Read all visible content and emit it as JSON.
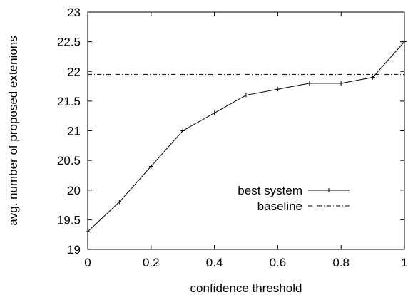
{
  "chart_data": {
    "type": "line",
    "title": "",
    "xlabel": "confidence threshold",
    "ylabel": "avg. number of proposed extenions",
    "xlim": [
      0,
      1
    ],
    "ylim": [
      19,
      23
    ],
    "x_ticks": [
      0,
      0.2,
      0.4,
      0.6,
      0.8,
      1
    ],
    "x_tick_labels": [
      "0",
      "0.2",
      "0.4",
      "0.6",
      "0.8",
      "1"
    ],
    "y_ticks": [
      19,
      19.5,
      20,
      20.5,
      21,
      21.5,
      22,
      22.5,
      23
    ],
    "y_tick_labels": [
      "19",
      "19.5",
      "20",
      "20.5",
      "21",
      "21.5",
      "22",
      "22.5",
      "23"
    ],
    "grid": false,
    "legend_position": "center-right",
    "series": [
      {
        "name": "best system",
        "style": "solid",
        "marker": "plus",
        "color": "#000000",
        "x": [
          0,
          0.1,
          0.2,
          0.3,
          0.4,
          0.5,
          0.6,
          0.7,
          0.8,
          0.9,
          1.0
        ],
        "y": [
          19.3,
          19.8,
          20.4,
          21.0,
          21.3,
          21.6,
          21.7,
          21.8,
          21.8,
          21.9,
          22.5
        ]
      },
      {
        "name": "baseline",
        "style": "dash-dot",
        "marker": "none",
        "color": "#000000",
        "x": [
          0,
          1
        ],
        "y": [
          21.95,
          21.95
        ]
      }
    ]
  }
}
